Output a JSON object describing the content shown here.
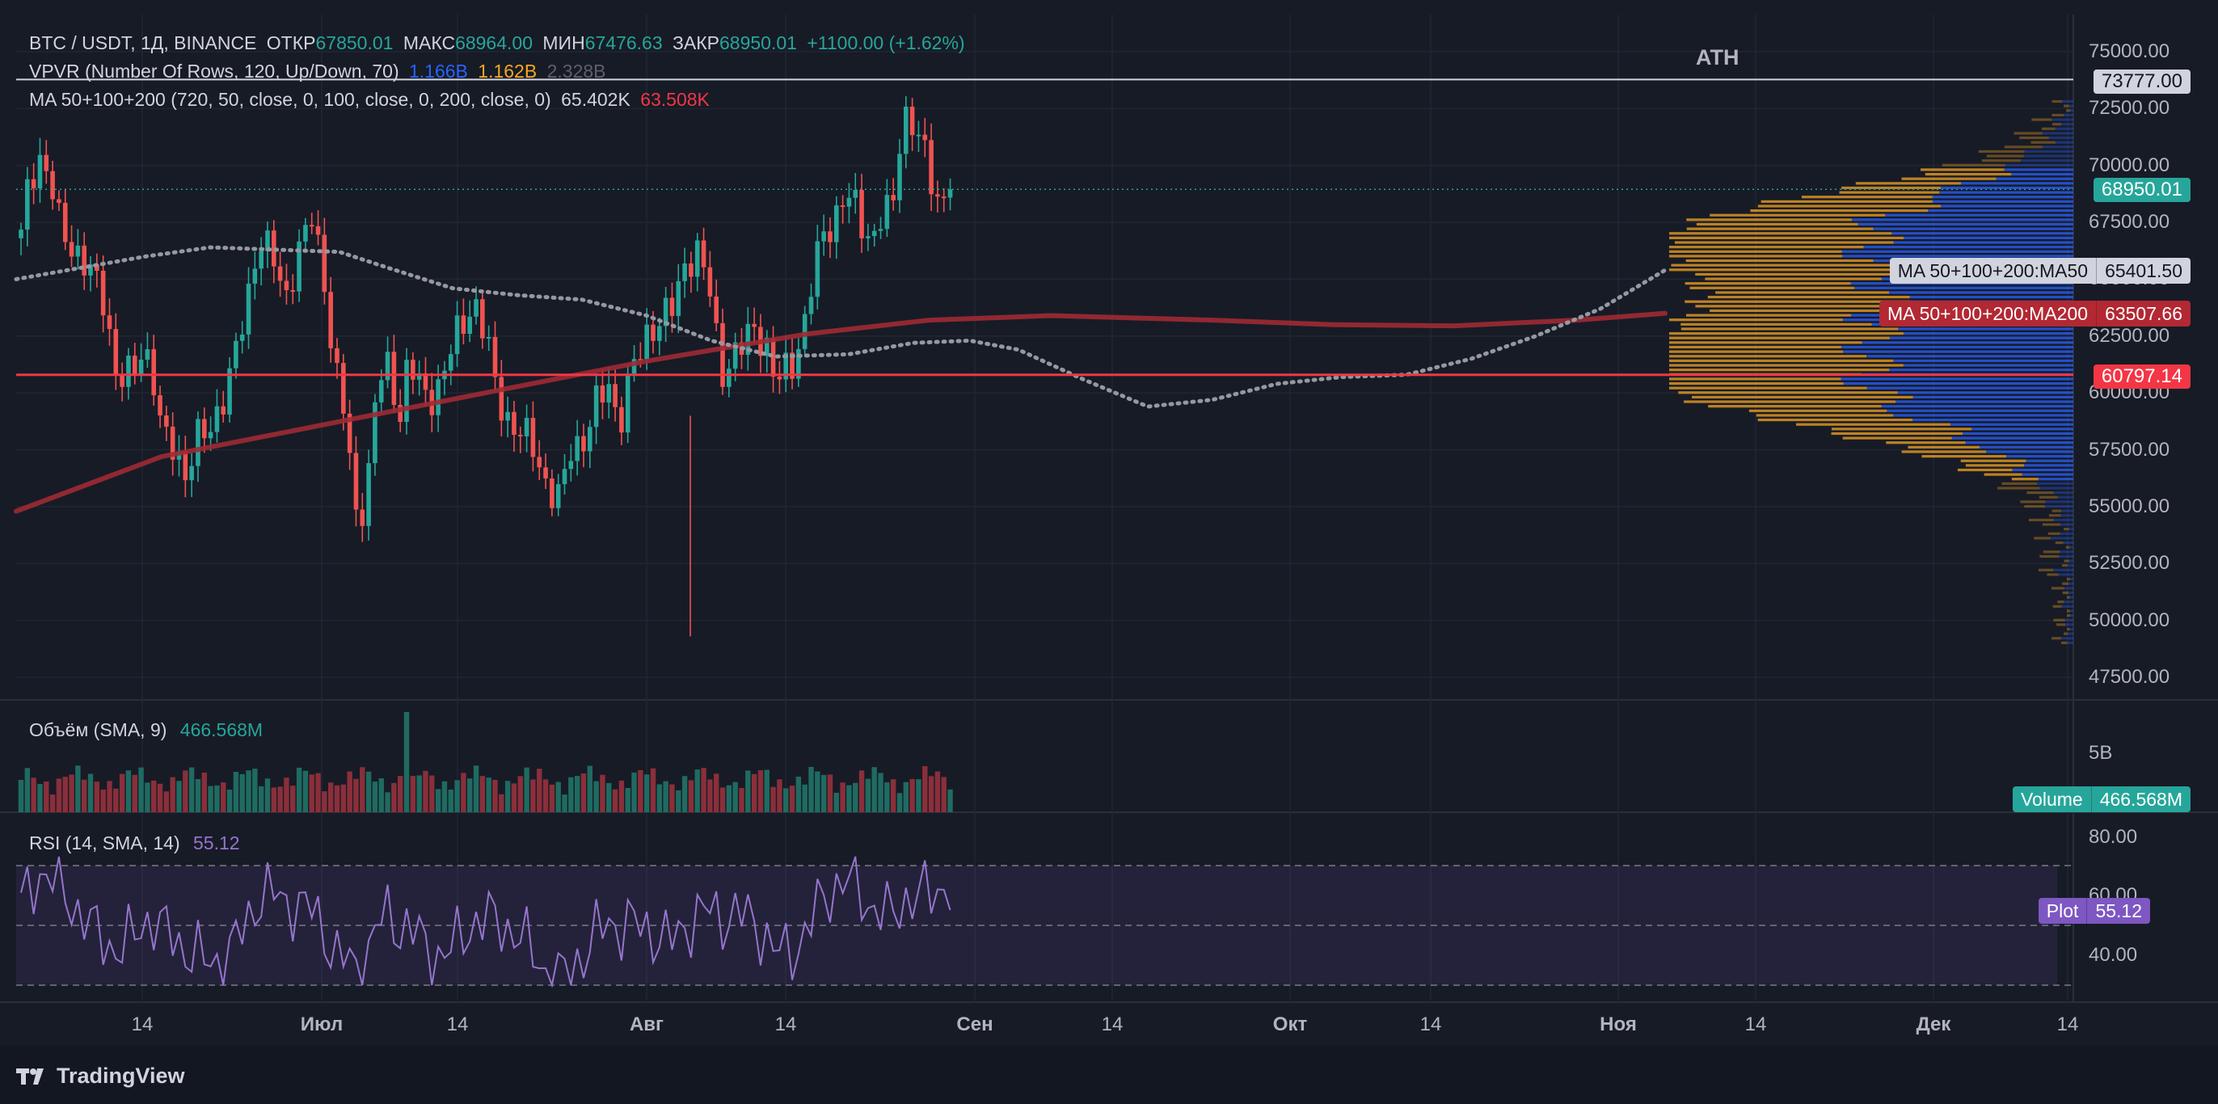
{
  "header": {
    "symbol": "BTC / USDT, 1Д, BINANCE",
    "open_label": "ОТКР",
    "open_value": "67850.01",
    "high_label": "МАКС",
    "high_value": "68964.00",
    "low_label": "МИН",
    "low_value": "67476.63",
    "close_label": "ЗАКР",
    "close_value": "68950.01",
    "change": "+1100.00 (+1.62%)"
  },
  "vpvr": {
    "title": "VPVR (Number Of Rows, 120, Up/Down, 70)",
    "up": "1.166B",
    "down": "1.162B",
    "total": "2.328B"
  },
  "ma": {
    "title": "MA 50+100+200 (720, 50, close, 0, 100, close, 0, 200, close, 0)",
    "ma50_value": "65.402K",
    "ma200_value": "63.508K"
  },
  "volume_pane": {
    "title": "Объём (SMA, 9)",
    "value": "466.568M",
    "scale_label": "5B",
    "tag_label": "Volume",
    "tag_value": "466.568M"
  },
  "rsi_pane": {
    "title": "RSI (14, SMA, 14)",
    "value": "55.12",
    "tag_label": "Plot",
    "tag_value": "55.12",
    "axis": [
      "80.00",
      "60.00",
      "40.00"
    ]
  },
  "price_axis": [
    "75000.00",
    "72500.00",
    "70000.00",
    "67500.00",
    "65000.00",
    "62500.00",
    "60000.00",
    "57500.00",
    "55000.00",
    "52500.00",
    "50000.00",
    "47500.00"
  ],
  "price_tags": {
    "ath": "73777.00",
    "last": "68950.01",
    "ma50_label": "MA 50+100+200:MA50",
    "ma50": "65401.50",
    "ma200_label": "MA 50+100+200:MA200",
    "ma200": "63507.66",
    "support": "60797.14"
  },
  "ath_label": "ATH",
  "time_axis": [
    "14",
    "Июл",
    "14",
    "Авг",
    "14",
    "Сен",
    "14",
    "Окт",
    "14",
    "Ноя",
    "14",
    "Дек",
    "14"
  ],
  "brand": "TradingView",
  "colors": {
    "up": "#26a69a",
    "down": "#ef5350",
    "ma50": "#b2b5be",
    "ma200": "#b22833",
    "support": "#f23645",
    "rsi": "#7e57c2",
    "vpvr_up": "#2962ff",
    "vpvr_down": "#f5a623"
  }
}
